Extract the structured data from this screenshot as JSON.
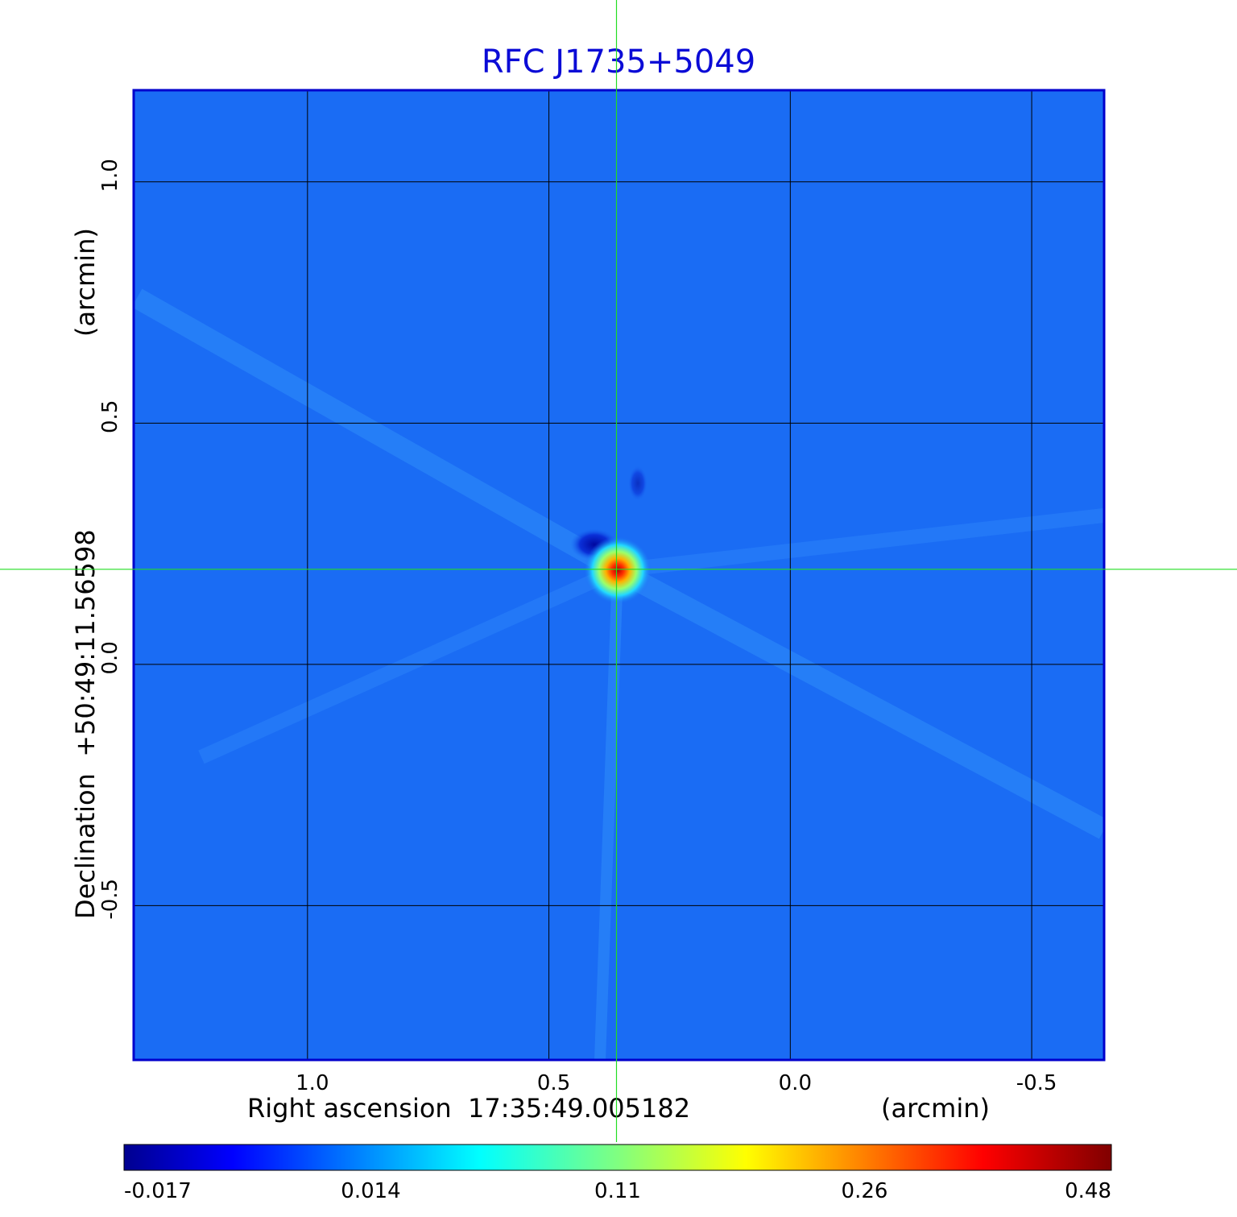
{
  "chart_data": {
    "type": "heatmap",
    "title": "RFC J1735+5049",
    "xlabel": "Right ascension  17:35:49.005182",
    "xunit": "(arcmin)",
    "ylabel": "Declination  +50:49:11.56598",
    "yunit": "(arcmin)",
    "xlim": [
      1.36,
      -0.65
    ],
    "ylim": [
      -0.82,
      1.19
    ],
    "x_ticks": [
      1.0,
      0.5,
      0.0,
      -0.5
    ],
    "x_tick_labels": [
      "1.0",
      "0.5",
      "0.0",
      "-0.5"
    ],
    "y_ticks": [
      1.0,
      0.5,
      0.0,
      -0.5
    ],
    "y_tick_labels": [
      "1.0",
      "0.5",
      "0.0",
      "-0.5"
    ],
    "grid": true,
    "crosshair": {
      "x": 0.36,
      "y": 0.197
    },
    "colorbar": {
      "colormap": "jet",
      "tick_labels": [
        "-0.017",
        "0.014",
        "0.11",
        "0.26",
        "0.48"
      ]
    },
    "features": [
      {
        "label": "peak",
        "x": 0.36,
        "y": 0.197,
        "value": 0.48
      },
      {
        "label": "negative lobe",
        "x": 0.41,
        "y": 0.25,
        "value": -0.017
      }
    ]
  },
  "colors": {
    "title": "#0b0bd6",
    "frame": "#0000cc",
    "grid": "#000000",
    "crosshair": "#22dd22",
    "background_field": "#1a6cf4"
  }
}
